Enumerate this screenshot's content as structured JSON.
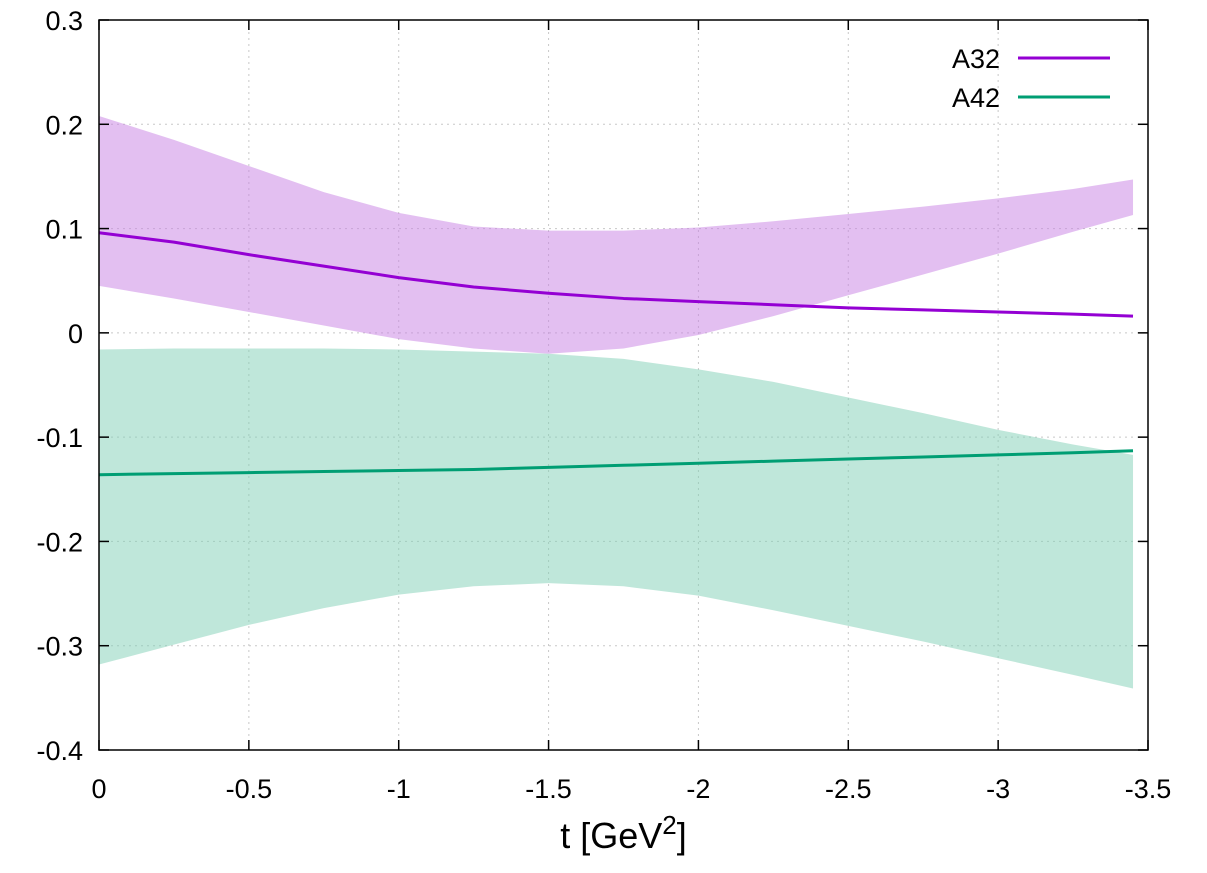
{
  "chart_data": {
    "type": "line",
    "xlabel": "t [GeV",
    "xlabel_sup": "2",
    "xlabel_close": "]",
    "ylabel": "",
    "xlim": [
      0,
      -3.5
    ],
    "ylim": [
      -0.4,
      0.3
    ],
    "x_axis_reversed": true,
    "grid": true,
    "legend_position": "top-right",
    "x_ticks": [
      0,
      -0.5,
      -1,
      -1.5,
      -2,
      -2.5,
      -3,
      -3.5
    ],
    "x_tick_labels": [
      "0",
      "-0.5",
      "-1",
      "-1.5",
      "-2",
      "-2.5",
      "-3",
      "-3.5"
    ],
    "y_ticks": [
      -0.4,
      -0.3,
      -0.2,
      -0.1,
      0,
      0.1,
      0.2,
      0.3
    ],
    "y_tick_labels": [
      "-0.4",
      "-0.3",
      "-0.2",
      "-0.1",
      "0",
      "0.1",
      "0.2",
      "0.3"
    ],
    "series": [
      {
        "name": "A32",
        "color": "#9400d3",
        "band_color": "#c77fe3",
        "band_opacity": 0.5,
        "x": [
          0,
          -0.25,
          -0.5,
          -0.75,
          -1,
          -1.25,
          -1.5,
          -1.75,
          -2,
          -2.25,
          -2.5,
          -2.75,
          -3,
          -3.25,
          -3.45
        ],
        "y": [
          0.096,
          0.087,
          0.075,
          0.064,
          0.053,
          0.044,
          0.038,
          0.033,
          0.03,
          0.027,
          0.024,
          0.022,
          0.02,
          0.018,
          0.016
        ],
        "lower": [
          0.045,
          0.033,
          0.02,
          0.007,
          -0.006,
          -0.015,
          -0.02,
          -0.015,
          -0.002,
          0.016,
          0.036,
          0.056,
          0.076,
          0.097,
          0.113
        ],
        "upper": [
          0.208,
          0.185,
          0.16,
          0.135,
          0.115,
          0.102,
          0.098,
          0.098,
          0.101,
          0.107,
          0.114,
          0.121,
          0.129,
          0.138,
          0.147
        ]
      },
      {
        "name": "A42",
        "color": "#009e73",
        "band_color": "#7fcfb5",
        "band_opacity": 0.5,
        "x": [
          0,
          -0.25,
          -0.5,
          -0.75,
          -1,
          -1.25,
          -1.5,
          -1.75,
          -2,
          -2.25,
          -2.5,
          -2.75,
          -3,
          -3.25,
          -3.45
        ],
        "y": [
          -0.136,
          -0.135,
          -0.134,
          -0.133,
          -0.132,
          -0.131,
          -0.129,
          -0.127,
          -0.125,
          -0.123,
          -0.121,
          -0.119,
          -0.117,
          -0.115,
          -0.113
        ],
        "lower": [
          -0.318,
          -0.299,
          -0.28,
          -0.264,
          -0.251,
          -0.243,
          -0.24,
          -0.243,
          -0.252,
          -0.266,
          -0.281,
          -0.296,
          -0.312,
          -0.328,
          -0.341
        ],
        "upper": [
          -0.016,
          -0.015,
          -0.015,
          -0.015,
          -0.016,
          -0.018,
          -0.02,
          -0.025,
          -0.035,
          -0.047,
          -0.062,
          -0.077,
          -0.093,
          -0.107,
          -0.117
        ]
      }
    ]
  }
}
